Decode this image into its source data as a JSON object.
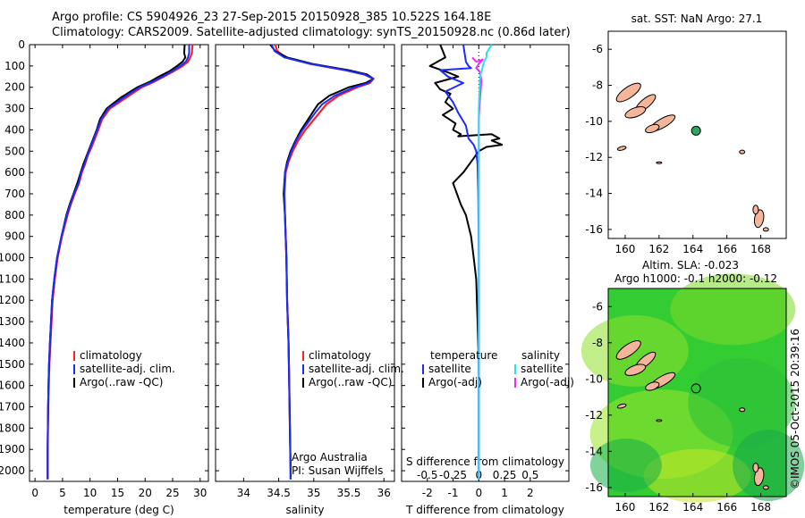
{
  "title_line1": "Argo profile: CS 5904926_23 27-Sep-2015 20150928_385 10.522S 164.18E",
  "title_line2": "Climatology: CARS2009. Satellite-adjusted climatology: synTS_20150928.nc (0.86d later)",
  "side_label": "©IMOS 05-Oct-2015 20:39:16",
  "colors": {
    "climatology": "#ff2020",
    "satellite": "#1a2cff",
    "argo": "#000000",
    "sat_salinity": "#22e6e6",
    "argo_salinity": "#ff20ff",
    "land": "#f4b59a",
    "sla_field": "#33cc33"
  },
  "depth_axis": {
    "range": [
      0,
      2050
    ],
    "ticks": [
      "0",
      "100",
      "200",
      "300",
      "400",
      "500",
      "600",
      "700",
      "800",
      "900",
      "1000",
      "1100",
      "1200",
      "1300",
      "1400",
      "1500",
      "1600",
      "1700",
      "1800",
      "1900",
      "2000"
    ]
  },
  "panels": {
    "temperature": {
      "xlabel": "temperature (deg C)",
      "xlim": [
        -1,
        31.5
      ],
      "xticks": [
        "0",
        "5",
        "10",
        "15",
        "20",
        "25",
        "30"
      ],
      "legend": [
        "climatology",
        "satellite-adj. clim.",
        "Argo(..raw -QC)"
      ]
    },
    "salinity": {
      "xlabel": "salinity",
      "xlim": [
        33.6,
        36.15
      ],
      "xticks": [
        "34",
        "34.5",
        "35",
        "35.5",
        "36"
      ],
      "legend": [
        "climatology",
        "satellite-adj. clim.",
        "Argo(..raw -QC)"
      ],
      "note_line1": "Argo Australia",
      "note_line2": "PI: Susan Wijffels"
    },
    "difference": {
      "xlabel": "T difference from climatology",
      "top_xlabel": "S difference from climatology",
      "xlim": [
        -3,
        3.5
      ],
      "xticks_bottom": [
        "-2",
        "-1",
        "0",
        "1",
        "2"
      ],
      "xticks_top": [
        "-0.5",
        "-0.25",
        "0",
        "0.25",
        "0.5"
      ],
      "legend_temp_header": "temperature",
      "legend_sal_header": "salinity",
      "legend_temp": [
        "satellite",
        "Argo(-adj)"
      ],
      "legend_sal": [
        "satellite",
        "Argo(-adj)"
      ]
    }
  },
  "map_sst": {
    "title": "sat. SST: NaN Argo: 27.1",
    "xlim": [
      159,
      169.5
    ],
    "ylim": [
      -16.5,
      -5
    ],
    "xticks": [
      "160",
      "162",
      "164",
      "166",
      "168"
    ],
    "yticks": [
      "-6",
      "-8",
      "-10",
      "-12",
      "-14",
      "-16"
    ],
    "argo_point": {
      "lon": 164.18,
      "lat": -10.522
    }
  },
  "map_sla": {
    "title_line1": "Altim. SLA: -0.023",
    "title_line2": "Argo h1000: -0.1 h2000: -0.12",
    "xlim": [
      159,
      169.5
    ],
    "ylim": [
      -16.5,
      -5
    ],
    "xticks": [
      "160",
      "162",
      "164",
      "166",
      "168"
    ],
    "yticks": [
      "-6",
      "-8",
      "-10",
      "-12",
      "-14",
      "-16"
    ],
    "argo_point": {
      "lon": 164.18,
      "lat": -10.522
    }
  },
  "chart_data": [
    {
      "type": "line",
      "xlabel": "temperature (deg C)",
      "ylabel": "",
      "xlim": [
        -1,
        31.5
      ],
      "ylim": [
        2050,
        0
      ],
      "series": [
        {
          "name": "climatology",
          "x": [
            28.6,
            28.5,
            28.2,
            27.8,
            26.8,
            25.2,
            23.4,
            21.6,
            19.4,
            16.5,
            13.6,
            12.2,
            11.5,
            10.9,
            10.3,
            9.6,
            9.1,
            8.5,
            8.0,
            7.2,
            6.5,
            5.9,
            4.9,
            4.1,
            3.6,
            3.2,
            3.0,
            2.8,
            2.6,
            2.5,
            2.4,
            2.35,
            2.3,
            2.3
          ],
          "y": [
            0,
            40,
            60,
            80,
            100,
            125,
            150,
            175,
            200,
            250,
            300,
            350,
            400,
            440,
            480,
            520,
            560,
            600,
            650,
            700,
            750,
            800,
            900,
            1000,
            1100,
            1200,
            1300,
            1400,
            1500,
            1600,
            1700,
            1800,
            1900,
            2040
          ]
        },
        {
          "name": "satellite-adj. clim.",
          "x": [
            28.0,
            28.0,
            27.8,
            27.4,
            26.4,
            24.9,
            23.2,
            21.3,
            19.0,
            16.0,
            13.3,
            12.0,
            11.3,
            10.7,
            10.1,
            9.5,
            9.0,
            8.4,
            7.9,
            7.1,
            6.4,
            5.8,
            4.8,
            4.0,
            3.5,
            3.1,
            2.9,
            2.7,
            2.55,
            2.45,
            2.38,
            2.33,
            2.3,
            2.3
          ],
          "y": [
            0,
            40,
            60,
            80,
            100,
            125,
            150,
            175,
            200,
            250,
            300,
            350,
            400,
            440,
            480,
            520,
            560,
            600,
            650,
            700,
            750,
            800,
            900,
            1000,
            1100,
            1200,
            1300,
            1400,
            1500,
            1600,
            1700,
            1800,
            1900,
            2040
          ]
        },
        {
          "name": "Argo(..raw -QC)",
          "x": [
            27.2,
            27.1,
            27.3,
            26.8,
            25.8,
            24.4,
            22.5,
            20.8,
            18.6,
            15.5,
            13.0,
            11.8,
            11.2,
            10.6,
            10.0,
            9.4,
            8.8,
            8.3,
            7.7,
            7.0,
            6.3,
            5.7,
            4.8,
            4.0,
            3.5,
            3.1,
            2.9,
            2.7,
            2.55,
            2.45,
            2.38,
            2.33,
            2.3,
            2.3
          ],
          "y": [
            0,
            40,
            60,
            80,
            100,
            125,
            150,
            175,
            200,
            250,
            300,
            350,
            400,
            440,
            480,
            520,
            560,
            600,
            650,
            700,
            750,
            800,
            900,
            1000,
            1100,
            1200,
            1300,
            1400,
            1500,
            1600,
            1700,
            1800,
            1900,
            2040
          ]
        }
      ]
    },
    {
      "type": "line",
      "xlabel": "salinity",
      "ylabel": "",
      "xlim": [
        33.6,
        36.15
      ],
      "ylim": [
        2050,
        0
      ],
      "series": [
        {
          "name": "climatology",
          "x": [
            34.45,
            34.48,
            34.6,
            34.95,
            35.45,
            35.72,
            35.85,
            35.8,
            35.62,
            35.35,
            35.18,
            35.08,
            34.98,
            34.88,
            34.78,
            34.7,
            34.64,
            34.6,
            34.58,
            34.59,
            34.61,
            34.62,
            34.64,
            34.65,
            34.66,
            34.67,
            34.67
          ],
          "y": [
            0,
            30,
            60,
            90,
            120,
            140,
            160,
            180,
            200,
            240,
            280,
            320,
            360,
            400,
            450,
            500,
            550,
            600,
            700,
            800,
            1000,
            1200,
            1400,
            1600,
            1800,
            2000,
            2040
          ]
        },
        {
          "name": "satellite-adj. clim.",
          "x": [
            34.4,
            34.44,
            34.58,
            34.95,
            35.45,
            35.72,
            35.85,
            35.78,
            35.58,
            35.3,
            35.12,
            35.02,
            34.93,
            34.84,
            34.75,
            34.68,
            34.63,
            34.59,
            34.58,
            34.59,
            34.61,
            34.62,
            34.64,
            34.65,
            34.66,
            34.67,
            34.67
          ],
          "y": [
            0,
            30,
            60,
            90,
            120,
            140,
            160,
            180,
            200,
            240,
            280,
            320,
            360,
            400,
            450,
            500,
            550,
            600,
            700,
            800,
            1000,
            1200,
            1400,
            1600,
            1800,
            2000,
            2040
          ]
        },
        {
          "name": "Argo(..raw -QC)",
          "x": [
            34.38,
            34.45,
            34.62,
            34.98,
            35.5,
            35.76,
            35.85,
            35.74,
            35.5,
            35.22,
            35.06,
            34.98,
            34.9,
            34.82,
            34.74,
            34.67,
            34.62,
            34.59,
            34.57,
            34.59,
            34.61,
            34.62,
            34.64,
            34.65,
            34.66,
            34.67,
            34.67
          ],
          "y": [
            0,
            30,
            60,
            90,
            120,
            140,
            160,
            180,
            200,
            240,
            280,
            320,
            360,
            400,
            450,
            500,
            550,
            600,
            700,
            800,
            1000,
            1200,
            1400,
            1600,
            1800,
            2000,
            2040
          ]
        }
      ]
    },
    {
      "type": "line",
      "xlabel": "T difference from climatology",
      "ylabel": "",
      "xlim": [
        -3,
        3.5
      ],
      "ylim": [
        2050,
        0
      ],
      "series": [
        {
          "name": "temperature satellite",
          "x": [
            -0.6,
            -0.5,
            -0.4,
            -0.3,
            -1.5,
            -1.2,
            -0.6,
            -1.3,
            -1.0,
            -0.8,
            -0.5,
            -0.4,
            -0.2,
            -0.1,
            -0.05,
            -0.02,
            0,
            0,
            0
          ],
          "y": [
            0,
            80,
            100,
            110,
            120,
            150,
            180,
            220,
            270,
            320,
            380,
            440,
            470,
            500,
            560,
            700,
            1000,
            1500,
            2040
          ]
        },
        {
          "name": "temperature Argo(-adj)",
          "x": [
            -1.5,
            -1.3,
            -1.9,
            -1.2,
            -0.8,
            -1.7,
            -1.5,
            -1.1,
            -1.3,
            -1.0,
            -1.4,
            -0.9,
            -1.0,
            -0.7,
            -0.8,
            0.5,
            0.8,
            0.5,
            0.9,
            0.3,
            0.0,
            -0.3,
            -0.6,
            -1.0,
            -0.7,
            -0.5,
            -0.3,
            -0.2,
            -0.1,
            -0.05,
            0,
            0,
            0
          ],
          "y": [
            0,
            60,
            100,
            130,
            150,
            180,
            210,
            230,
            270,
            300,
            330,
            370,
            400,
            420,
            430,
            420,
            440,
            450,
            470,
            480,
            500,
            550,
            600,
            650,
            750,
            800,
            900,
            1000,
            1100,
            1300,
            1500,
            1800,
            2040
          ]
        },
        {
          "name": "salinity satellite",
          "x": [
            0.5,
            0.3,
            0.3,
            0.2,
            0.05,
            0,
            0,
            0
          ],
          "y": [
            0,
            40,
            60,
            80,
            150,
            300,
            1000,
            2040
          ]
        },
        {
          "name": "salinity Argo(-adj)",
          "x": [
            -0.25,
            -0.1,
            0.15,
            0.0,
            -0.1,
            0.05,
            0.1,
            0.05,
            0,
            0,
            0
          ],
          "y": [
            60,
            80,
            70,
            90,
            110,
            130,
            170,
            250,
            350,
            1000,
            2040
          ]
        }
      ]
    }
  ]
}
